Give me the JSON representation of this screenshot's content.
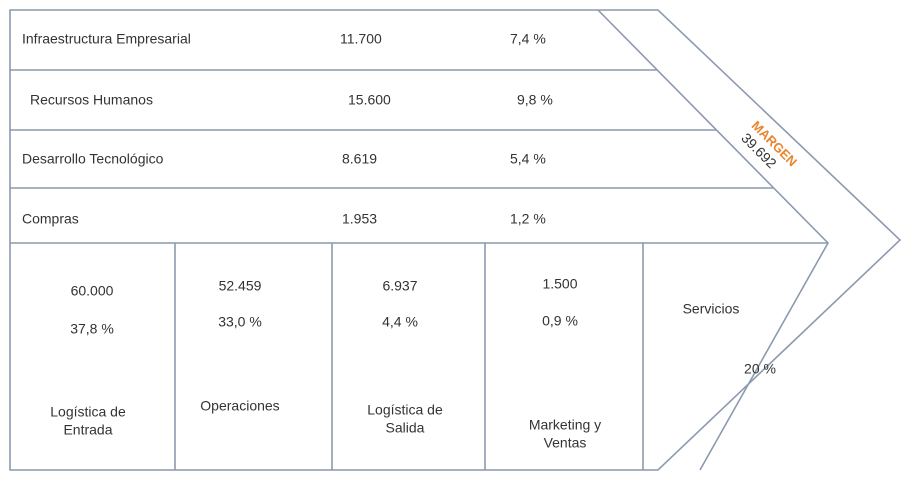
{
  "support_activities": [
    {
      "name": "Infraestructura Empresarial",
      "value": "11.700",
      "percent": "7,4 %"
    },
    {
      "name": "Recursos Humanos",
      "value": "15.600",
      "percent": "9,8 %"
    },
    {
      "name": "Desarrollo Tecnológico",
      "value": "8.619",
      "percent": "5,4 %"
    },
    {
      "name": "Compras",
      "value": "1.953",
      "percent": "1,2 %"
    }
  ],
  "primary_activities": [
    {
      "name_lines": [
        "Logística de",
        "Entrada"
      ],
      "value": "60.000",
      "percent": "37,8 %"
    },
    {
      "name_lines": [
        "Operaciones"
      ],
      "value": "52.459",
      "percent": "33,0 %"
    },
    {
      "name_lines": [
        "Logística de",
        "Salida"
      ],
      "value": "6.937",
      "percent": "4,4 %"
    },
    {
      "name_lines": [
        "Marketing y",
        "Ventas"
      ],
      "value": "1.500",
      "percent": "0,9 %"
    }
  ],
  "services": {
    "name": "Servicios",
    "percent": "20 %"
  },
  "margin": {
    "label": "MARGEN",
    "value": "39.692"
  }
}
